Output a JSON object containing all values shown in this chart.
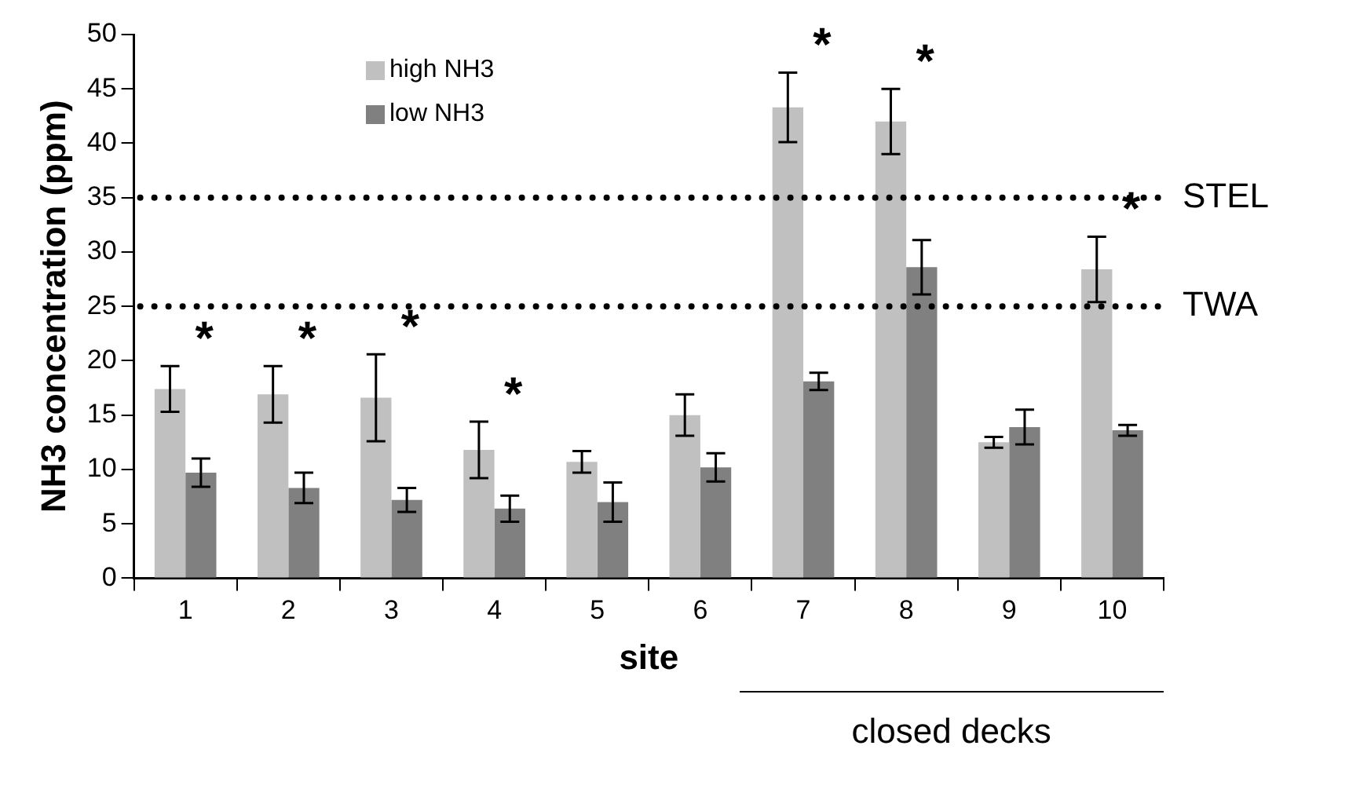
{
  "chart_data": {
    "type": "bar",
    "xlabel": "site",
    "ylabel": "NH3 concentration (ppm)",
    "categories": [
      "1",
      "2",
      "3",
      "4",
      "5",
      "6",
      "7",
      "8",
      "9",
      "10"
    ],
    "series": [
      {
        "name": "high NH3",
        "color": "#c0c0c0",
        "values": [
          17.4,
          16.9,
          16.6,
          11.8,
          10.7,
          15.0,
          43.3,
          42.0,
          12.5,
          28.4
        ],
        "errors": [
          2.1,
          2.6,
          4.0,
          2.6,
          1.0,
          1.9,
          3.2,
          3.0,
          0.5,
          3.0
        ]
      },
      {
        "name": "low NH3",
        "color": "#808080",
        "values": [
          9.7,
          8.3,
          7.2,
          6.4,
          7.0,
          10.2,
          18.1,
          28.6,
          13.9,
          13.6
        ],
        "errors": [
          1.3,
          1.4,
          1.1,
          1.2,
          1.8,
          1.3,
          0.8,
          2.5,
          1.6,
          0.5
        ]
      }
    ],
    "ylim": [
      0,
      50
    ],
    "yticks": [
      0,
      5,
      10,
      15,
      20,
      25,
      30,
      35,
      40,
      45,
      50
    ],
    "grid": false,
    "legend": "top left",
    "ref_lines": [
      {
        "axis": "y",
        "value": 35,
        "label": "STEL",
        "line_style": "dotted"
      },
      {
        "axis": "y",
        "value": 25,
        "label": "TWA",
        "line_style": "dotted"
      }
    ],
    "annotations": [
      {
        "text": "*",
        "x": "1",
        "y": 19.5
      },
      {
        "text": "*",
        "x": "2",
        "y": 19.5
      },
      {
        "text": "*",
        "x": "3",
        "y": 20.6
      },
      {
        "text": "*",
        "x": "4",
        "y": 14.4
      },
      {
        "text": "*",
        "x": "7",
        "y": 46.5
      },
      {
        "text": "*",
        "x": "8",
        "y": 45.0
      },
      {
        "text": "*",
        "x": "10",
        "y": 31.4
      },
      "closed decks"
    ]
  }
}
